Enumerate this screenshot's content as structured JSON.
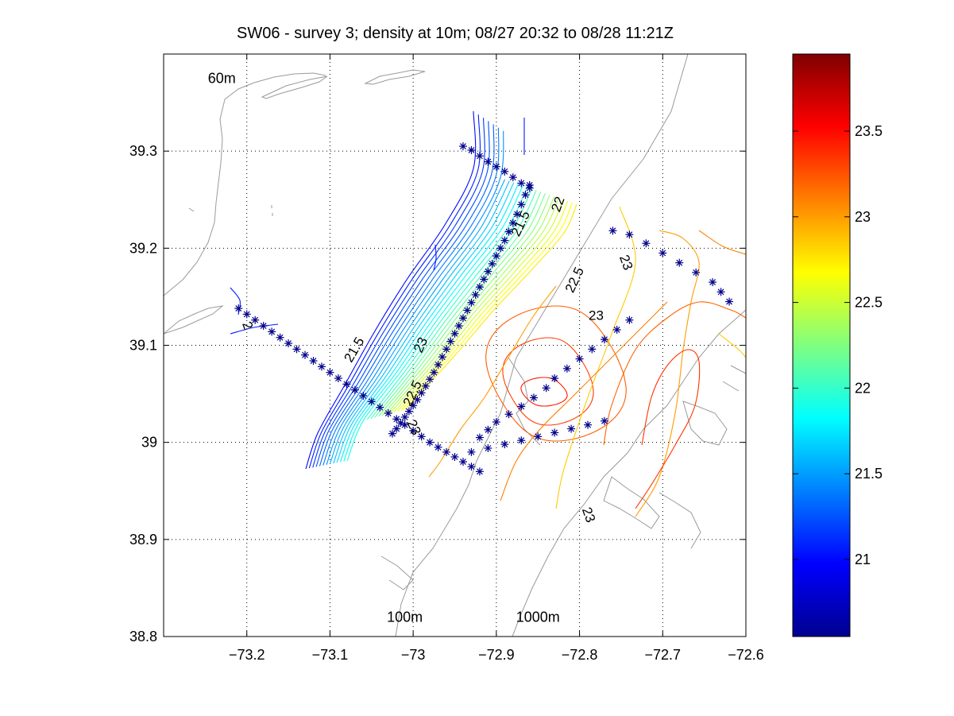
{
  "chart_data": {
    "type": "contour",
    "title": "SW06 - survey 3; density at 10m; 08/27 20:32 to 08/28 11:21Z",
    "xlabel": "",
    "ylabel": "",
    "xlim": [
      -73.3,
      -72.6
    ],
    "ylim": [
      38.8,
      39.4
    ],
    "xticks": [
      -73.2,
      -73.1,
      -73.0,
      -72.9,
      -72.8,
      -72.7,
      -72.6
    ],
    "xtick_labels": [
      "−73.2",
      "−73.1",
      "−73",
      "−72.9",
      "−72.8",
      "−72.7",
      "−72.6"
    ],
    "yticks": [
      38.8,
      38.9,
      39.0,
      39.1,
      39.2,
      39.3
    ],
    "ytick_labels": [
      "38.8",
      "38.9",
      "39",
      "39.1",
      "39.2",
      "39.3"
    ],
    "grid": true,
    "colorbar": {
      "range": [
        20.55,
        23.95
      ],
      "ticks": [
        21,
        21.5,
        22,
        22.5,
        23,
        23.5
      ],
      "tick_labels": [
        "21",
        "21.5",
        "22",
        "22.5",
        "23",
        "23.5"
      ],
      "colormap": "jet"
    },
    "isobath_labels": [
      {
        "text": "60m",
        "x": -73.23,
        "y": 39.37
      },
      {
        "text": "100m",
        "x": -73.01,
        "y": 38.815
      },
      {
        "text": "1000m",
        "x": -72.85,
        "y": 38.815
      }
    ],
    "contour_labels": [
      {
        "text": "21.5",
        "x": -72.87,
        "y": 39.225,
        "rot": -65
      },
      {
        "text": "22",
        "x": -72.825,
        "y": 39.245,
        "rot": -70
      },
      {
        "text": "22.5",
        "x": -72.805,
        "y": 39.167,
        "rot": -65
      },
      {
        "text": "23",
        "x": -72.78,
        "y": 39.13,
        "rot": 0
      },
      {
        "text": "23",
        "x": -72.745,
        "y": 39.185,
        "rot": 70
      },
      {
        "text": "21.5",
        "x": -73.07,
        "y": 39.095,
        "rot": -60
      },
      {
        "text": "23",
        "x": -72.99,
        "y": 39.1,
        "rot": -65
      },
      {
        "text": "2",
        "x": -73.2,
        "y": 39.12,
        "rot": 70
      },
      {
        "text": "22.5",
        "x": -73.0,
        "y": 39.05,
        "rot": -65
      },
      {
        "text": "23",
        "x": -73.0,
        "y": 39.015,
        "rot": 65
      },
      {
        "text": "23",
        "x": -72.79,
        "y": 38.925,
        "rot": 70
      }
    ],
    "station_tracks": [
      {
        "name": "",
        "x": [
          -72.94,
          -72.93,
          -72.92,
          -72.91,
          -72.9,
          -72.89,
          -72.88,
          -72.87,
          -72.86
        ],
        "y": [
          39.305,
          39.301,
          39.295,
          39.289,
          39.284,
          39.279,
          39.273,
          39.267,
          39.262
        ]
      },
      {
        "name": "",
        "x": [
          -72.86,
          -72.865,
          -72.87,
          -72.875,
          -72.88,
          -72.885,
          -72.89,
          -72.895,
          -72.9,
          -72.905,
          -72.91,
          -72.915,
          -72.92,
          -72.925,
          -72.93,
          -72.935,
          -72.94,
          -72.945,
          -72.95,
          -72.955,
          -72.96,
          -72.965,
          -72.97,
          -72.975,
          -72.98,
          -72.985,
          -72.99,
          -72.995,
          -73.0,
          -73.005,
          -73.01,
          -73.015,
          -73.02,
          -73.025
        ],
        "y": [
          39.265,
          39.255,
          39.245,
          39.235,
          39.226,
          39.217,
          39.208,
          39.2,
          39.192,
          39.184,
          39.176,
          39.168,
          39.16,
          39.152,
          39.144,
          39.136,
          39.128,
          39.12,
          39.112,
          39.104,
          39.096,
          39.088,
          39.08,
          39.072,
          39.065,
          39.058,
          39.051,
          39.044,
          39.038,
          39.032,
          39.026,
          39.02,
          39.014,
          39.009
        ]
      },
      {
        "name": "",
        "x": [
          -73.21,
          -73.2,
          -73.19,
          -73.18,
          -73.17,
          -73.16,
          -73.15,
          -73.14,
          -73.13,
          -73.12,
          -73.11,
          -73.1,
          -73.09,
          -73.08,
          -73.07,
          -73.06,
          -73.05,
          -73.04,
          -73.03,
          -73.02,
          -73.01,
          -73.0,
          -72.99,
          -72.98,
          -72.97,
          -72.96,
          -72.95,
          -72.94,
          -72.93,
          -72.92
        ],
        "y": [
          39.138,
          39.132,
          39.126,
          39.12,
          39.114,
          39.108,
          39.102,
          39.096,
          39.09,
          39.084,
          39.078,
          39.072,
          39.066,
          39.06,
          39.054,
          39.048,
          39.042,
          39.036,
          39.03,
          39.024,
          39.018,
          39.012,
          39.006,
          39.0,
          38.995,
          38.99,
          38.985,
          38.98,
          38.975,
          38.97
        ]
      },
      {
        "name": "",
        "x": [
          -72.92,
          -72.91,
          -72.9,
          -72.885,
          -72.87,
          -72.855,
          -72.84,
          -72.83,
          -72.815,
          -72.8,
          -72.785,
          -72.77,
          -72.755,
          -72.74
        ],
        "y": [
          39.005,
          39.013,
          39.021,
          39.029,
          39.037,
          39.046,
          39.056,
          39.066,
          39.076,
          39.086,
          39.096,
          39.106,
          39.116,
          39.126
        ]
      },
      {
        "name": "",
        "x": [
          -72.93,
          -72.91,
          -72.89,
          -72.87,
          -72.85,
          -72.83,
          -72.81,
          -72.79,
          -72.77
        ],
        "y": [
          38.99,
          38.994,
          38.998,
          39.002,
          39.006,
          39.01,
          39.014,
          39.018,
          39.022
        ]
      },
      {
        "name": "",
        "x": [
          -72.76,
          -72.74,
          -72.72,
          -72.7,
          -72.68,
          -72.66,
          -72.64,
          -72.63,
          -72.62
        ],
        "y": [
          39.218,
          39.214,
          39.205,
          39.195,
          39.185,
          39.175,
          39.165,
          39.155,
          39.145
        ]
      }
    ]
  }
}
